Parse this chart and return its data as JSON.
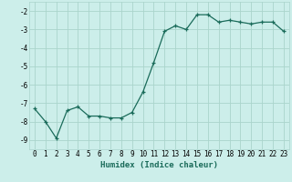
{
  "x": [
    0,
    1,
    2,
    3,
    4,
    5,
    6,
    7,
    8,
    9,
    10,
    11,
    12,
    13,
    14,
    15,
    16,
    17,
    18,
    19,
    20,
    21,
    22,
    23
  ],
  "y": [
    -7.3,
    -8.0,
    -8.9,
    -7.4,
    -7.2,
    -7.7,
    -7.7,
    -7.8,
    -7.8,
    -7.5,
    -6.4,
    -4.8,
    -3.1,
    -2.8,
    -3.0,
    -2.2,
    -2.2,
    -2.6,
    -2.5,
    -2.6,
    -2.7,
    -2.6,
    -2.6,
    -3.1
  ],
  "xlabel": "Humidex (Indice chaleur)",
  "xlim": [
    -0.5,
    23.5
  ],
  "ylim": [
    -9.5,
    -1.5
  ],
  "yticks": [
    -9,
    -8,
    -7,
    -6,
    -5,
    -4,
    -3,
    -2
  ],
  "xticks": [
    0,
    1,
    2,
    3,
    4,
    5,
    6,
    7,
    8,
    9,
    10,
    11,
    12,
    13,
    14,
    15,
    16,
    17,
    18,
    19,
    20,
    21,
    22,
    23
  ],
  "line_color": "#1a6b5a",
  "marker": "+",
  "bg_color": "#cceeea",
  "grid_color": "#aad4cc",
  "label_fontsize": 6.5,
  "tick_fontsize": 5.5
}
